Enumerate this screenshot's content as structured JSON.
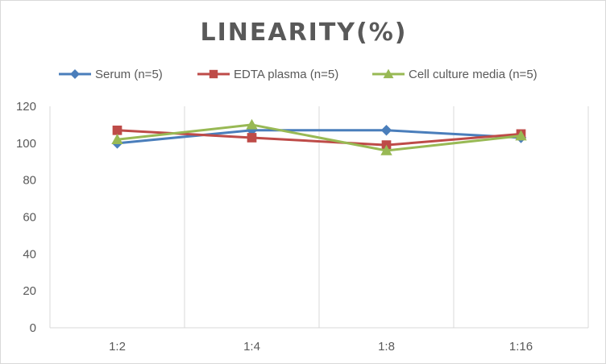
{
  "chart_data": {
    "type": "line",
    "title": "LINEARITY(%)",
    "xlabel": "",
    "ylabel": "",
    "categories": [
      "1:2",
      "1:4",
      "1:8",
      "1:16"
    ],
    "ylim": [
      0,
      120
    ],
    "yticks": [
      0,
      20,
      40,
      60,
      80,
      100,
      120
    ],
    "grid": "vertical",
    "legend_position": "top",
    "series": [
      {
        "name": "Serum (n=5)",
        "values": [
          100,
          107,
          107,
          103
        ],
        "color": "#4a7ebb",
        "marker": "diamond"
      },
      {
        "name": "EDTA plasma (n=5)",
        "values": [
          107,
          103,
          99,
          105
        ],
        "color": "#be4b48",
        "marker": "square"
      },
      {
        "name": "Cell culture media (n=5)",
        "values": [
          102,
          110,
          96,
          104
        ],
        "color": "#98b954",
        "marker": "triangle"
      }
    ]
  }
}
